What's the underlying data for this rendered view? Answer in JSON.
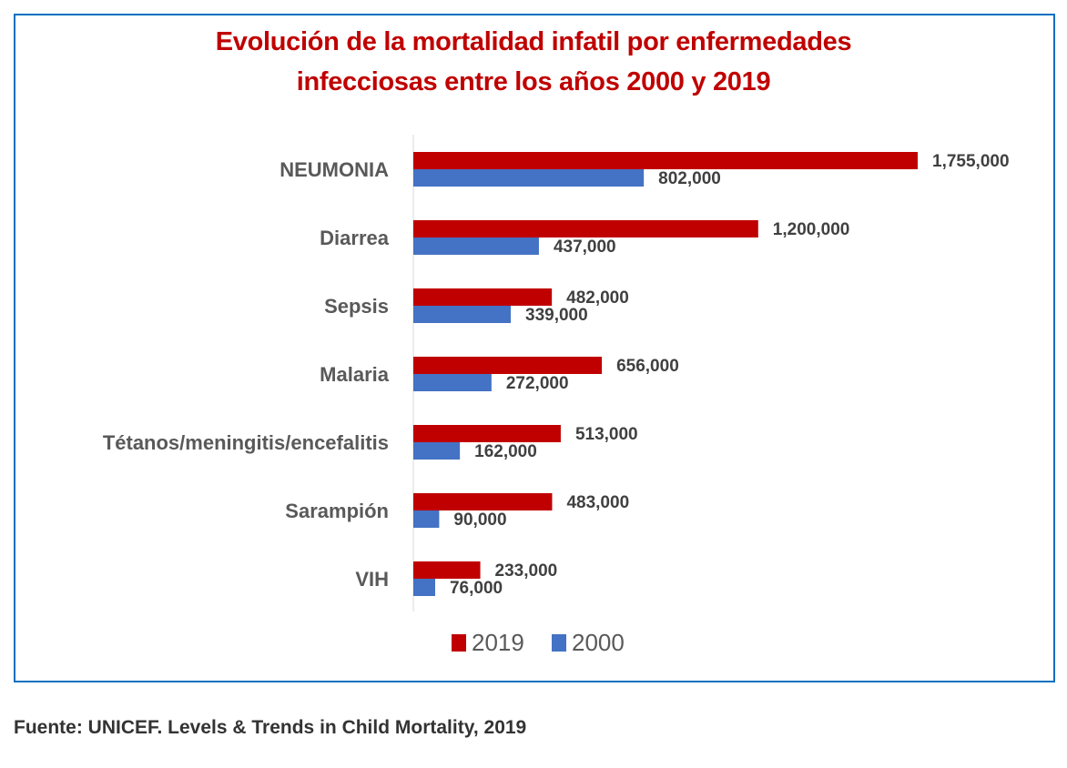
{
  "chart_data": {
    "type": "bar",
    "orientation": "horizontal",
    "title": "Evolución de la mortalidad infatil por enfermedades infecciosas entre los años 2000 y 2019",
    "title_lines": [
      "Evolución de la mortalidad infatil por enfermedades",
      "infecciosas entre los años 2000 y 2019"
    ],
    "categories": [
      "NEUMONIA",
      "Diarrea",
      "Sepsis",
      "Malaria",
      "Tétanos/meningitis/encefalitis",
      "Sarampión",
      "VIH"
    ],
    "series": [
      {
        "name": "2019",
        "color": "#C00000",
        "values": [
          1755000,
          1200000,
          482000,
          656000,
          513000,
          483000,
          233000
        ],
        "labels": [
          "1,755,000",
          "1,200,000",
          "482,000",
          "656,000",
          "513,000",
          "483,000",
          "233,000"
        ]
      },
      {
        "name": "2000",
        "color": "#4472C4",
        "values": [
          802000,
          437000,
          339000,
          272000,
          162000,
          90000,
          76000
        ],
        "labels": [
          "802,000",
          "437,000",
          "339,000",
          "272,000",
          "162,000",
          "90,000",
          "76,000"
        ]
      }
    ],
    "xlim": [
      0,
      1755000
    ],
    "grid": false,
    "legend": "bottom",
    "xlabel": "",
    "ylabel": ""
  },
  "source": "Fuente: UNICEF. Levels & Trends in Child Mortality, 2019",
  "colors": {
    "frame": "#0070C0",
    "title": "#C00000"
  }
}
